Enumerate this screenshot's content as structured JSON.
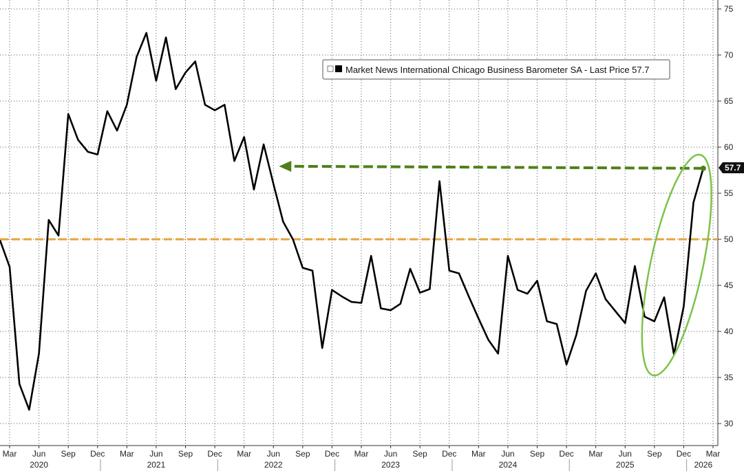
{
  "chart_data": {
    "type": "line",
    "title": "",
    "xlabel": "",
    "ylabel": "",
    "ylim": [
      30,
      75
    ],
    "xlim": [
      "2020-03",
      "2026-03"
    ],
    "y_ticks": [
      30,
      35,
      40,
      45,
      50,
      55,
      60,
      65,
      70,
      75
    ],
    "month_ticks": [
      "Mar",
      "Jun",
      "Sep",
      "Dec",
      "Mar",
      "Jun",
      "Sep",
      "Dec",
      "Mar",
      "Jun",
      "Sep",
      "Dec",
      "Mar",
      "Jun",
      "Sep",
      "Dec",
      "Mar",
      "Jun",
      "Sep",
      "Dec",
      "Mar",
      "Jun",
      "Sep",
      "Dec",
      "Mar"
    ],
    "month_tick_dates": [
      "2020-03",
      "2020-06",
      "2020-09",
      "2020-12",
      "2021-03",
      "2021-06",
      "2021-09",
      "2021-12",
      "2022-03",
      "2022-06",
      "2022-09",
      "2022-12",
      "2023-03",
      "2023-06",
      "2023-09",
      "2023-12",
      "2024-03",
      "2024-06",
      "2024-09",
      "2024-12",
      "2025-03",
      "2025-06",
      "2025-09",
      "2025-12",
      "2026-03"
    ],
    "year_labels": [
      {
        "label": "2020",
        "date": "2020-06"
      },
      {
        "label": "2021",
        "date": "2021-06"
      },
      {
        "label": "2022",
        "date": "2022-06"
      },
      {
        "label": "2023",
        "date": "2023-06"
      },
      {
        "label": "2024",
        "date": "2024-06"
      },
      {
        "label": "2025",
        "date": "2025-06"
      },
      {
        "label": "2026",
        "date": "2026-02"
      }
    ],
    "grid": true,
    "legend_position": "top-right",
    "series": [
      {
        "name": "Market News International Chicago Business Barometer SA - Last Price 57.7",
        "color": "#000000",
        "x": [
          "2020-02",
          "2020-03",
          "2020-04",
          "2020-05",
          "2020-06",
          "2020-07",
          "2020-08",
          "2020-09",
          "2020-10",
          "2020-11",
          "2020-12",
          "2021-01",
          "2021-02",
          "2021-03",
          "2021-04",
          "2021-05",
          "2021-06",
          "2021-07",
          "2021-08",
          "2021-09",
          "2021-10",
          "2021-11",
          "2021-12",
          "2022-01",
          "2022-02",
          "2022-03",
          "2022-04",
          "2022-05",
          "2022-06",
          "2022-07",
          "2022-08",
          "2022-09",
          "2022-10",
          "2022-11",
          "2022-12",
          "2023-01",
          "2023-02",
          "2023-03",
          "2023-04",
          "2023-05",
          "2023-06",
          "2023-07",
          "2023-08",
          "2023-09",
          "2023-10",
          "2023-11",
          "2023-12",
          "2024-01",
          "2024-02",
          "2024-03",
          "2024-04",
          "2024-05",
          "2024-06",
          "2024-07",
          "2024-08",
          "2024-09",
          "2024-10",
          "2024-11",
          "2024-12",
          "2025-01",
          "2025-02",
          "2025-03",
          "2025-04",
          "2025-05",
          "2025-06",
          "2025-07",
          "2025-08",
          "2025-09",
          "2025-10",
          "2025-11",
          "2025-12",
          "2026-01",
          "2026-02"
        ],
        "y": [
          49.9,
          47.0,
          34.3,
          31.5,
          37.6,
          52.1,
          50.4,
          63.6,
          60.8,
          59.5,
          59.2,
          63.9,
          61.8,
          64.6,
          69.8,
          72.4,
          67.2,
          71.9,
          66.3,
          68.1,
          69.3,
          64.6,
          64.0,
          64.6,
          58.5,
          61.1,
          55.4,
          60.3,
          56.0,
          51.9,
          50.0,
          46.9,
          46.6,
          38.2,
          44.5,
          43.8,
          43.2,
          43.1,
          48.2,
          42.5,
          42.3,
          43.0,
          46.8,
          44.2,
          44.6,
          56.3,
          46.6,
          46.3,
          43.8,
          41.4,
          39.1,
          37.6,
          48.2,
          44.5,
          44.1,
          45.5,
          41.1,
          40.8,
          36.4,
          39.6,
          44.4,
          46.3,
          43.5,
          42.2,
          40.9,
          47.1,
          41.6,
          41.1,
          43.7,
          37.5,
          42.7,
          54.0,
          57.7
        ]
      }
    ],
    "reference_line": {
      "value": 50,
      "color": "#e8a33c"
    },
    "last_price": {
      "value": 57.7,
      "label": "57.7"
    },
    "annotation_arrow": {
      "from_date": "2026-02",
      "to_date": "2022-06",
      "value": 57.7,
      "color": "#4f7f1a"
    },
    "highlight_ellipse_color": "#7cc24a"
  }
}
